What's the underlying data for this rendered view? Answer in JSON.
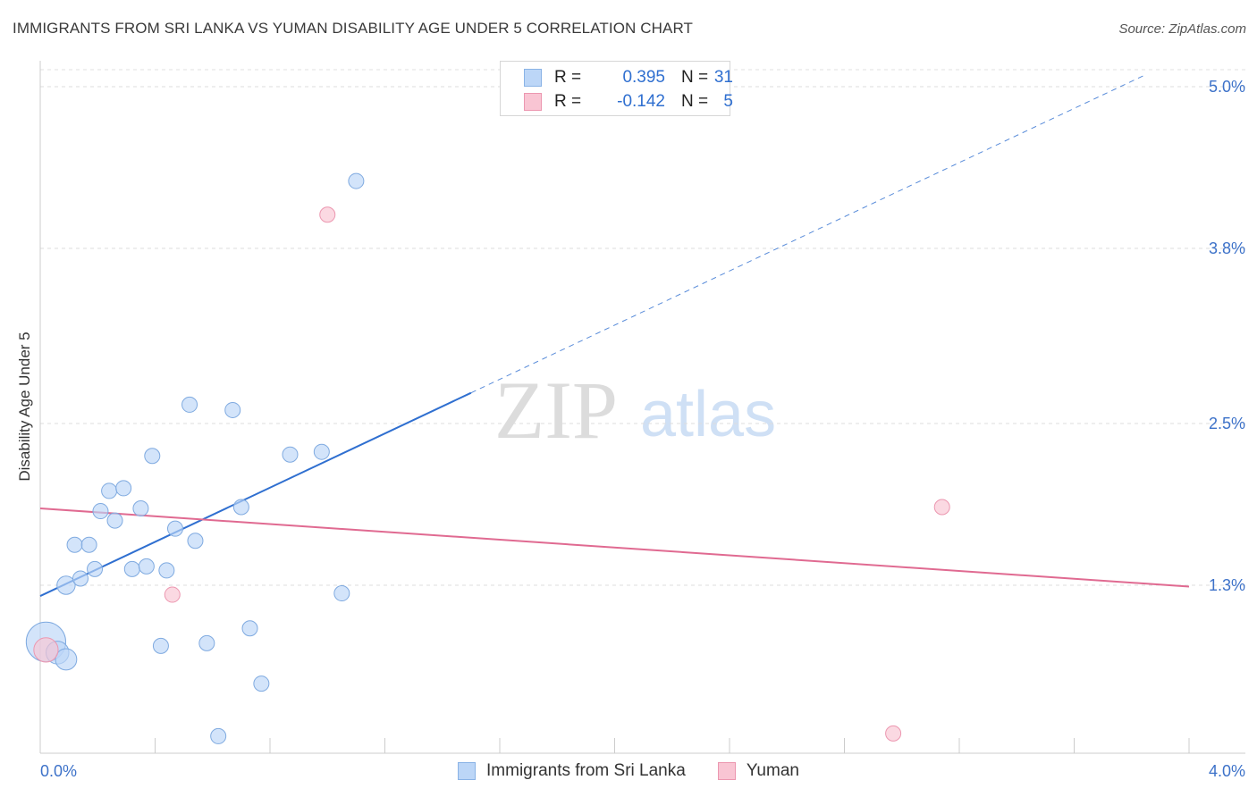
{
  "header": {
    "title": "IMMIGRANTS FROM SRI LANKA VS YUMAN DISABILITY AGE UNDER 5 CORRELATION CHART",
    "source": "Source: ZipAtlas.com"
  },
  "watermark": {
    "part1": "ZIP",
    "part2": "atlas"
  },
  "stats_legend": [
    {
      "swatch_color": "#bcd6f7",
      "r_label": "R =",
      "r_value": "0.395",
      "n_label": "N =",
      "n_value": "31"
    },
    {
      "swatch_color": "#f9c5d3",
      "r_label": "R =",
      "r_value": "-0.142",
      "n_label": "N =",
      "n_value": "5"
    }
  ],
  "bottom_legend": [
    {
      "label": "Immigrants from Sri Lanka",
      "color": "#bcd6f7"
    },
    {
      "label": "Yuman",
      "color": "#f9c5d3"
    }
  ],
  "chart_data": {
    "type": "scatter",
    "ylabel": "Disability Age Under 5",
    "xlim": [
      0.0,
      4.0
    ],
    "ylim": [
      0.0,
      5.2
    ],
    "x_tick_labels": [
      "0.0%",
      "4.0%"
    ],
    "y_ticks": [
      {
        "value": 5.0,
        "label": "5.0%"
      },
      {
        "value": 3.8,
        "label": "3.8%"
      },
      {
        "value": 2.5,
        "label": "2.5%"
      },
      {
        "value": 1.3,
        "label": "1.3%"
      }
    ],
    "grid": true,
    "series": [
      {
        "name": "Immigrants from Sri Lanka",
        "color": "#bcd6f7",
        "stroke": "#7faae0",
        "trend_color": "#2f6fd0",
        "trend": {
          "x0": 0.0,
          "y0": 1.22,
          "x1": 3.84,
          "y1": 5.08,
          "solid_until_x": 1.5
        },
        "points": [
          {
            "x": 0.02,
            "y": 0.88,
            "size": 2.6
          },
          {
            "x": 0.06,
            "y": 0.8,
            "size": 1.5
          },
          {
            "x": 0.09,
            "y": 0.75,
            "size": 1.4
          },
          {
            "x": 0.09,
            "y": 1.3,
            "size": 1.2
          },
          {
            "x": 0.14,
            "y": 1.35,
            "size": 1.0
          },
          {
            "x": 0.12,
            "y": 1.6,
            "size": 1.0
          },
          {
            "x": 0.17,
            "y": 1.6,
            "size": 1.0
          },
          {
            "x": 0.19,
            "y": 1.42,
            "size": 1.0
          },
          {
            "x": 0.21,
            "y": 1.85,
            "size": 1.0
          },
          {
            "x": 0.24,
            "y": 2.0,
            "size": 1.0
          },
          {
            "x": 0.26,
            "y": 1.78,
            "size": 1.0
          },
          {
            "x": 0.29,
            "y": 2.02,
            "size": 1.0
          },
          {
            "x": 0.32,
            "y": 1.42,
            "size": 1.0
          },
          {
            "x": 0.35,
            "y": 1.87,
            "size": 1.0
          },
          {
            "x": 0.37,
            "y": 1.44,
            "size": 1.0
          },
          {
            "x": 0.39,
            "y": 2.26,
            "size": 1.0
          },
          {
            "x": 0.42,
            "y": 0.85,
            "size": 1.0
          },
          {
            "x": 0.44,
            "y": 1.41,
            "size": 1.0
          },
          {
            "x": 0.47,
            "y": 1.72,
            "size": 1.0
          },
          {
            "x": 0.52,
            "y": 2.64,
            "size": 1.0
          },
          {
            "x": 0.54,
            "y": 1.63,
            "size": 1.0
          },
          {
            "x": 0.58,
            "y": 0.87,
            "size": 1.0
          },
          {
            "x": 0.62,
            "y": 0.18,
            "size": 1.0
          },
          {
            "x": 0.67,
            "y": 2.6,
            "size": 1.0
          },
          {
            "x": 0.7,
            "y": 1.88,
            "size": 1.0
          },
          {
            "x": 0.73,
            "y": 0.98,
            "size": 1.0
          },
          {
            "x": 0.77,
            "y": 0.57,
            "size": 1.0
          },
          {
            "x": 0.87,
            "y": 2.27,
            "size": 1.0
          },
          {
            "x": 0.98,
            "y": 2.29,
            "size": 1.0
          },
          {
            "x": 1.05,
            "y": 1.24,
            "size": 1.0
          },
          {
            "x": 1.1,
            "y": 4.3,
            "size": 1.0
          }
        ]
      },
      {
        "name": "Yuman",
        "color": "#f9c5d3",
        "stroke": "#ec97b0",
        "trend_color": "#e06a91",
        "trend": {
          "x0": 0.0,
          "y0": 1.87,
          "x1": 4.0,
          "y1": 1.29,
          "solid_until_x": 4.0
        },
        "points": [
          {
            "x": 0.02,
            "y": 0.82,
            "size": 1.6
          },
          {
            "x": 0.46,
            "y": 1.23,
            "size": 1.0
          },
          {
            "x": 1.0,
            "y": 4.05,
            "size": 1.0
          },
          {
            "x": 2.97,
            "y": 0.2,
            "size": 1.0
          },
          {
            "x": 3.14,
            "y": 1.88,
            "size": 1.0
          }
        ]
      }
    ]
  }
}
